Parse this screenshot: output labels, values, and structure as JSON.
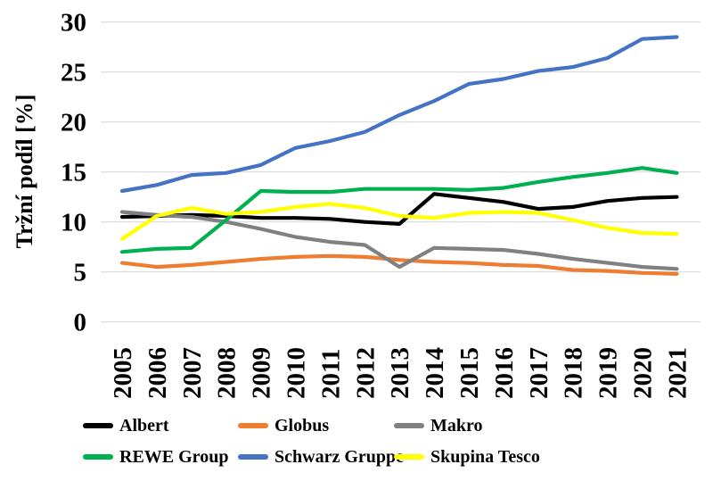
{
  "page": {
    "background": "#ffffff"
  },
  "chart_data": {
    "type": "line",
    "title": "",
    "xlabel": "",
    "ylabel": "Tržní podíl [%]",
    "categories": [
      "2005",
      "2006",
      "2007",
      "2008",
      "2009",
      "2010",
      "2011",
      "2012",
      "2013",
      "2014",
      "2015",
      "2016",
      "2017",
      "2018",
      "2019",
      "2020",
      "2021"
    ],
    "ylim": [
      0,
      30
    ],
    "y_ticks": [
      0,
      5,
      10,
      15,
      20,
      25,
      30
    ],
    "grid": "horizontal",
    "gridline_color": "#D9D9D9",
    "x_label_rotation": -90,
    "legend_position": "bottom",
    "series": [
      {
        "name": "Albert",
        "color": "#000000",
        "values": [
          10.5,
          10.6,
          10.7,
          10.6,
          10.4,
          10.4,
          10.3,
          10.0,
          9.8,
          12.8,
          12.4,
          12.0,
          11.3,
          11.5,
          12.1,
          12.4,
          12.5
        ]
      },
      {
        "name": "Globus",
        "color": "#ED7D31",
        "values": [
          5.9,
          5.5,
          5.7,
          6.0,
          6.3,
          6.5,
          6.6,
          6.5,
          6.2,
          6.0,
          5.9,
          5.7,
          5.6,
          5.2,
          5.1,
          4.9,
          4.8
        ]
      },
      {
        "name": "Makro",
        "color": "#808080",
        "values": [
          11.0,
          10.7,
          10.5,
          10.0,
          9.3,
          8.5,
          8.0,
          7.7,
          5.5,
          7.4,
          7.3,
          7.2,
          6.8,
          6.3,
          5.9,
          5.5,
          5.3
        ]
      },
      {
        "name": "REWE Group",
        "color": "#00B050",
        "values": [
          7.0,
          7.3,
          7.4,
          10.2,
          13.1,
          13.0,
          13.0,
          13.3,
          13.3,
          13.3,
          13.2,
          13.4,
          14.0,
          14.5,
          14.9,
          15.4,
          14.9
        ]
      },
      {
        "name": "Schwarz Gruppe",
        "color": "#4472C4",
        "values": [
          13.1,
          13.7,
          14.7,
          14.9,
          15.7,
          17.4,
          18.1,
          19.0,
          20.7,
          22.1,
          23.8,
          24.3,
          25.1,
          25.5,
          26.4,
          28.3,
          28.5
        ]
      },
      {
        "name": "Skupina Tesco",
        "color": "#FFFF00",
        "values": [
          8.3,
          10.6,
          11.4,
          10.8,
          11.0,
          11.5,
          11.8,
          11.4,
          10.6,
          10.4,
          10.9,
          11.0,
          10.9,
          10.2,
          9.4,
          8.9,
          8.8
        ]
      }
    ]
  }
}
